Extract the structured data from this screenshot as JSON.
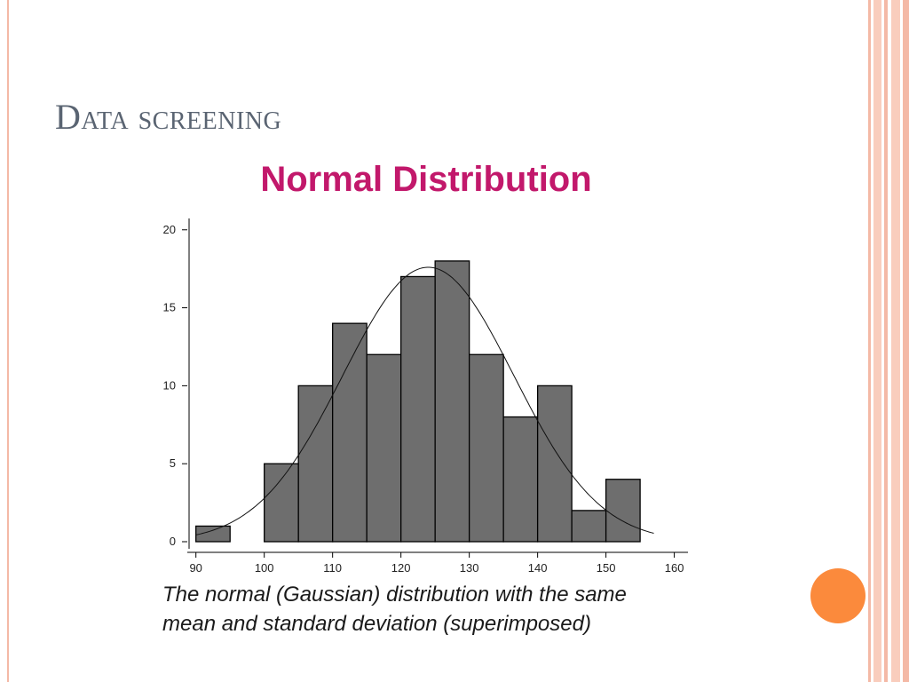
{
  "slide": {
    "title": "Data screening",
    "caption_line1": "The normal (Gaussian) distribution with the same",
    "caption_line2": "mean and standard deviation (superimposed)"
  },
  "colors": {
    "title": "#5a6472",
    "chart_title": "#c2186b",
    "bar_fill": "#6e6e6e",
    "accent_stripe": "#f4b9a6",
    "orange_dot": "#fb8a3c"
  },
  "chart_data": {
    "type": "bar",
    "title": "Normal Distribution",
    "xlabel": "",
    "ylabel": "",
    "bins": [
      {
        "start": 90,
        "end": 95,
        "count": 1
      },
      {
        "start": 95,
        "end": 100,
        "count": 0
      },
      {
        "start": 100,
        "end": 105,
        "count": 5
      },
      {
        "start": 105,
        "end": 110,
        "count": 10
      },
      {
        "start": 110,
        "end": 115,
        "count": 14
      },
      {
        "start": 115,
        "end": 120,
        "count": 12
      },
      {
        "start": 120,
        "end": 125,
        "count": 17
      },
      {
        "start": 125,
        "end": 130,
        "count": 18
      },
      {
        "start": 130,
        "end": 135,
        "count": 12
      },
      {
        "start": 135,
        "end": 140,
        "count": 8
      },
      {
        "start": 140,
        "end": 145,
        "count": 10
      },
      {
        "start": 145,
        "end": 150,
        "count": 2
      },
      {
        "start": 150,
        "end": 155,
        "count": 4
      }
    ],
    "x_ticks": [
      90,
      100,
      110,
      120,
      130,
      140,
      150,
      160
    ],
    "y_ticks": [
      0,
      5,
      10,
      15,
      20
    ],
    "xlim": [
      89,
      162
    ],
    "ylim": [
      0,
      20.5
    ],
    "normal_curve": {
      "mean": 124,
      "sd": 12.5,
      "peak": 17.6,
      "x_range": [
        90,
        157
      ]
    },
    "grid": false,
    "legend": "none"
  }
}
